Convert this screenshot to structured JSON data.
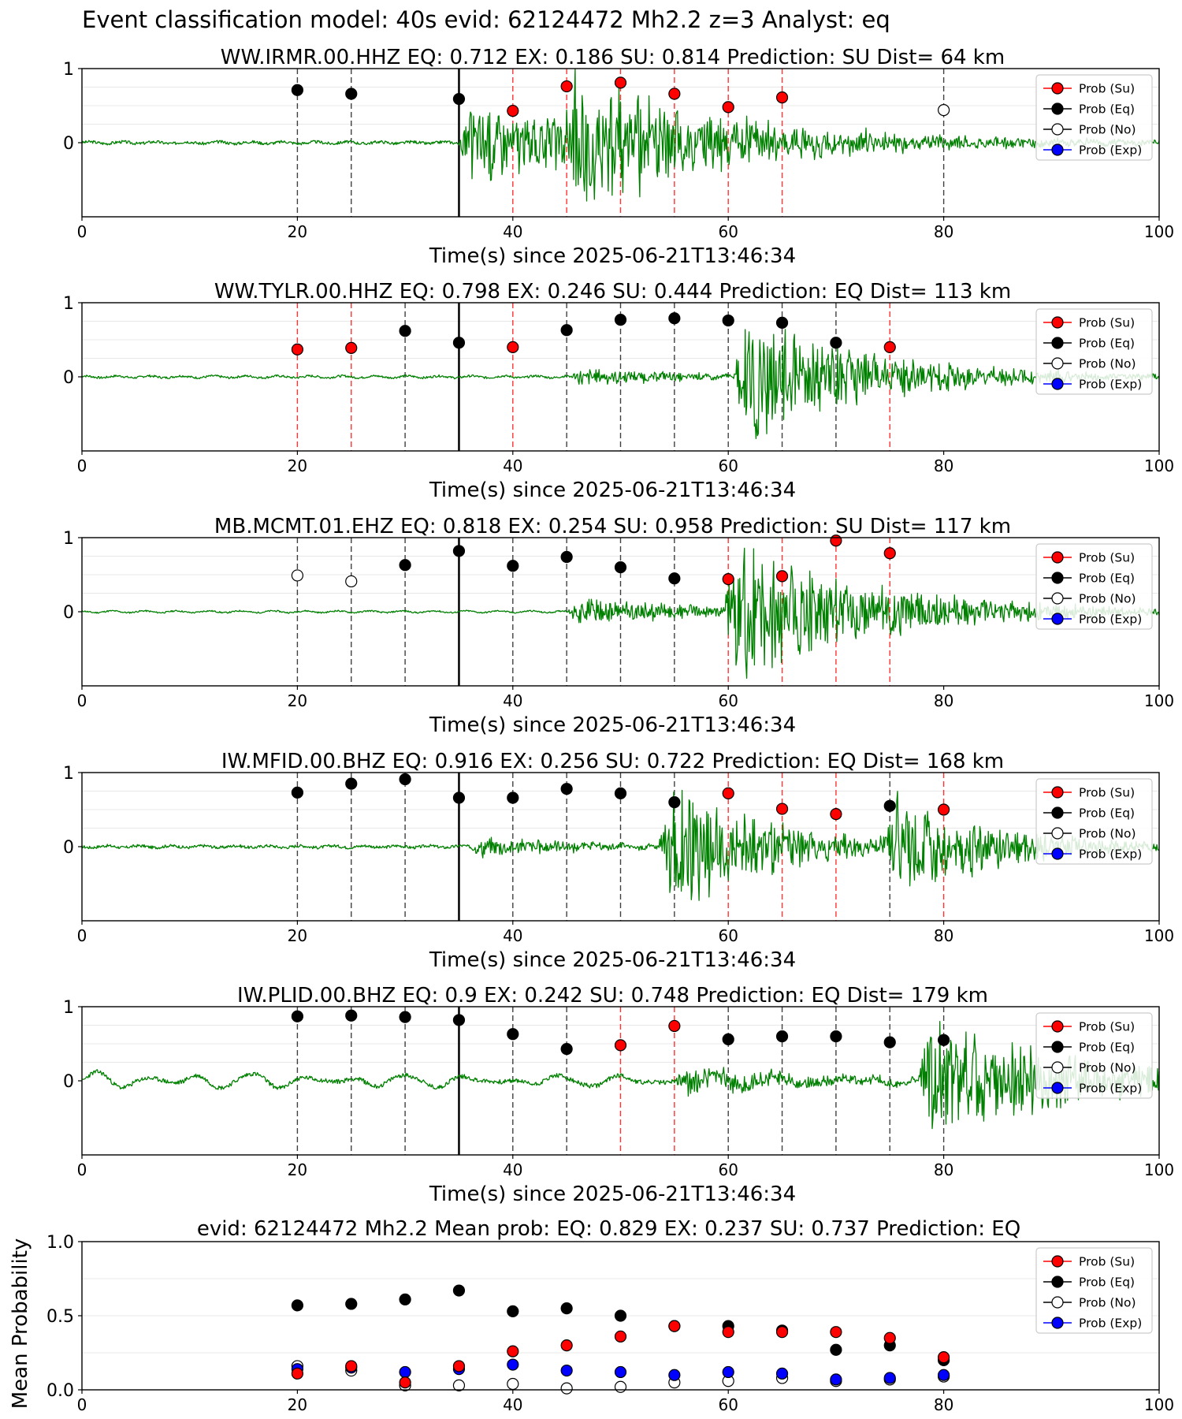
{
  "figure_title": "Event classification model: 40s evid: 62124472 Mh2.2 z=3 Analyst: eq",
  "legend_labels": [
    "Prob (Su)",
    "Prob (Eq)",
    "Prob (No)",
    "Prob (Exp)"
  ],
  "colors": {
    "su": "#ff0000",
    "eq": "#000000",
    "no": "#ffffff",
    "exp": "#0000ff",
    "waveform": "#008000",
    "su_line": "#ff0000",
    "eq_line": "#000000",
    "grid": "#e8e8e8"
  },
  "chart_data": [
    {
      "type": "line+scatter",
      "title": "WW.IRMR.00.HHZ   EQ: 0.712  EX: 0.186  SU: 0.814   Prediction: SU    Dist= 64 km",
      "xlabel": "Time(s) since 2025-06-21T13:46:34",
      "ylabel": "",
      "xlim": [
        0,
        100
      ],
      "ylim": [
        -1,
        1
      ],
      "xticks": [
        "0",
        "20",
        "40",
        "60",
        "80",
        "100"
      ],
      "yticks": [
        "1",
        "0"
      ],
      "origin_time": 35,
      "waveform": {
        "onsets": [
          {
            "t": 35,
            "amp": 0.6
          },
          {
            "t": 44.5,
            "amp": 0.95
          }
        ],
        "noise": 0.02,
        "coda": 15,
        "seed": 3
      },
      "windows": [
        {
          "t": 20,
          "label": "EQ",
          "prob": 0.71
        },
        {
          "t": 25,
          "label": "EQ",
          "prob": 0.66
        },
        {
          "t": 35,
          "label": "EQ",
          "prob": 0.59
        },
        {
          "t": 40,
          "label": "SU",
          "prob": 0.43
        },
        {
          "t": 45,
          "label": "SU",
          "prob": 0.76
        },
        {
          "t": 50,
          "label": "SU",
          "prob": 0.81
        },
        {
          "t": 55,
          "label": "SU",
          "prob": 0.66
        },
        {
          "t": 60,
          "label": "SU",
          "prob": 0.48
        },
        {
          "t": 65,
          "label": "SU",
          "prob": 0.61
        },
        {
          "t": 80,
          "label": "NO",
          "prob": 0.44
        }
      ]
    },
    {
      "type": "line+scatter",
      "title": "WW.TYLR.00.HHZ   EQ: 0.798  EX: 0.246  SU: 0.444   Prediction: EQ    Dist= 113 km",
      "xlabel": "Time(s) since 2025-06-21T13:46:34",
      "ylabel": "",
      "xlim": [
        0,
        100
      ],
      "ylim": [
        -1,
        1
      ],
      "xticks": [
        "0",
        "20",
        "40",
        "60",
        "80",
        "100"
      ],
      "yticks": [
        "1",
        "0"
      ],
      "origin_time": 35,
      "waveform": {
        "onsets": [
          {
            "t": 45,
            "amp": 0.12
          },
          {
            "t": 60.5,
            "amp": 0.95
          }
        ],
        "noise": 0.015,
        "coda": 12,
        "seed": 7
      },
      "windows": [
        {
          "t": 20,
          "label": "SU",
          "prob": 0.37
        },
        {
          "t": 25,
          "label": "SU",
          "prob": 0.39
        },
        {
          "t": 30,
          "label": "EQ",
          "prob": 0.62
        },
        {
          "t": 35,
          "label": "EQ",
          "prob": 0.46
        },
        {
          "t": 40,
          "label": "SU",
          "prob": 0.4
        },
        {
          "t": 45,
          "label": "EQ",
          "prob": 0.63
        },
        {
          "t": 50,
          "label": "EQ",
          "prob": 0.77
        },
        {
          "t": 55,
          "label": "EQ",
          "prob": 0.79
        },
        {
          "t": 60,
          "label": "EQ",
          "prob": 0.76
        },
        {
          "t": 65,
          "label": "EQ",
          "prob": 0.73
        },
        {
          "t": 70,
          "label": "EQ",
          "prob": 0.46
        },
        {
          "t": 75,
          "label": "SU",
          "prob": 0.4
        }
      ]
    },
    {
      "type": "line+scatter",
      "title": "MB.MCMT.01.EHZ   EQ: 0.818  EX: 0.254  SU: 0.958   Prediction: SU    Dist= 117 km",
      "xlabel": "Time(s) since 2025-06-21T13:46:34",
      "ylabel": "",
      "xlim": [
        0,
        100
      ],
      "ylim": [
        -1,
        1
      ],
      "xticks": [
        "0",
        "20",
        "40",
        "60",
        "80",
        "100"
      ],
      "yticks": [
        "1",
        "0"
      ],
      "origin_time": 35,
      "waveform": {
        "onsets": [
          {
            "t": 45,
            "amp": 0.2
          },
          {
            "t": 59.5,
            "amp": 0.95
          }
        ],
        "noise": 0.01,
        "coda": 14,
        "seed": 11
      },
      "windows": [
        {
          "t": 20,
          "label": "NO",
          "prob": 0.49
        },
        {
          "t": 25,
          "label": "NO",
          "prob": 0.41
        },
        {
          "t": 30,
          "label": "EQ",
          "prob": 0.63
        },
        {
          "t": 35,
          "label": "EQ",
          "prob": 0.82
        },
        {
          "t": 40,
          "label": "EQ",
          "prob": 0.62
        },
        {
          "t": 45,
          "label": "EQ",
          "prob": 0.74
        },
        {
          "t": 50,
          "label": "EQ",
          "prob": 0.6
        },
        {
          "t": 55,
          "label": "EQ",
          "prob": 0.45
        },
        {
          "t": 60,
          "label": "SU",
          "prob": 0.44
        },
        {
          "t": 65,
          "label": "SU",
          "prob": 0.48
        },
        {
          "t": 70,
          "label": "SU",
          "prob": 0.96
        },
        {
          "t": 75,
          "label": "SU",
          "prob": 0.79
        }
      ]
    },
    {
      "type": "line+scatter",
      "title": "IW.MFID.00.BHZ   EQ: 0.916  EX: 0.256  SU: 0.722   Prediction: EQ    Dist= 168 km",
      "xlabel": "Time(s) since 2025-06-21T13:46:34",
      "ylabel": "",
      "xlim": [
        0,
        100
      ],
      "ylim": [
        -1,
        1
      ],
      "xticks": [
        "0",
        "20",
        "40",
        "60",
        "80",
        "100"
      ],
      "yticks": [
        "1",
        "0"
      ],
      "origin_time": 35,
      "waveform": {
        "onsets": [
          {
            "t": 36,
            "amp": 0.15
          },
          {
            "t": 53.5,
            "amp": 0.95
          },
          {
            "t": 74.5,
            "amp": 0.75
          }
        ],
        "noise": 0.02,
        "coda": 10,
        "seed": 17
      },
      "windows": [
        {
          "t": 20,
          "label": "EQ",
          "prob": 0.73
        },
        {
          "t": 25,
          "label": "EQ",
          "prob": 0.85
        },
        {
          "t": 30,
          "label": "EQ",
          "prob": 0.91
        },
        {
          "t": 35,
          "label": "EQ",
          "prob": 0.66
        },
        {
          "t": 40,
          "label": "EQ",
          "prob": 0.66
        },
        {
          "t": 45,
          "label": "EQ",
          "prob": 0.78
        },
        {
          "t": 50,
          "label": "EQ",
          "prob": 0.72
        },
        {
          "t": 55,
          "label": "EQ",
          "prob": 0.6
        },
        {
          "t": 60,
          "label": "SU",
          "prob": 0.72
        },
        {
          "t": 65,
          "label": "SU",
          "prob": 0.51
        },
        {
          "t": 70,
          "label": "SU",
          "prob": 0.44
        },
        {
          "t": 75,
          "label": "EQ",
          "prob": 0.55
        },
        {
          "t": 80,
          "label": "SU",
          "prob": 0.5
        }
      ]
    },
    {
      "type": "line+scatter",
      "title": "IW.PLID.00.BHZ   EQ: 0.9  EX: 0.242  SU: 0.748   Prediction: EQ    Dist= 179 km",
      "xlabel": "Time(s) since 2025-06-21T13:46:34",
      "ylabel": "",
      "xlim": [
        0,
        100
      ],
      "ylim": [
        -1,
        1
      ],
      "xticks": [
        "0",
        "20",
        "40",
        "60",
        "80",
        "100"
      ],
      "yticks": [
        "1",
        "0"
      ],
      "origin_time": 35,
      "waveform": {
        "onsets": [
          {
            "t": 55,
            "amp": 0.2
          },
          {
            "t": 77.5,
            "amp": 0.95
          }
        ],
        "noise": 0.03,
        "coda": 14,
        "seed": 23,
        "swell": 0.08
      },
      "windows": [
        {
          "t": 20,
          "label": "EQ",
          "prob": 0.87
        },
        {
          "t": 25,
          "label": "EQ",
          "prob": 0.88
        },
        {
          "t": 30,
          "label": "EQ",
          "prob": 0.86
        },
        {
          "t": 35,
          "label": "EQ",
          "prob": 0.82
        },
        {
          "t": 40,
          "label": "EQ",
          "prob": 0.63
        },
        {
          "t": 45,
          "label": "EQ",
          "prob": 0.43
        },
        {
          "t": 50,
          "label": "SU",
          "prob": 0.48
        },
        {
          "t": 55,
          "label": "SU",
          "prob": 0.74
        },
        {
          "t": 60,
          "label": "EQ",
          "prob": 0.56
        },
        {
          "t": 65,
          "label": "EQ",
          "prob": 0.6
        },
        {
          "t": 70,
          "label": "EQ",
          "prob": 0.6
        },
        {
          "t": 75,
          "label": "EQ",
          "prob": 0.52
        },
        {
          "t": 80,
          "label": "EQ",
          "prob": 0.55
        }
      ]
    },
    {
      "type": "scatter",
      "title": "evid: 62124472  Mh2.2   Mean prob:   EQ: 0.829  EX: 0.237  SU: 0.737   Prediction: EQ",
      "xlabel": "",
      "ylabel": "Mean Probability",
      "xlim": [
        0,
        100
      ],
      "ylim": [
        0,
        1
      ],
      "xticks": [
        "0",
        "20",
        "40",
        "60",
        "80",
        "100"
      ],
      "yticks": [
        "1.0",
        "0.5",
        "0.0"
      ],
      "x": [
        20,
        25,
        30,
        35,
        40,
        45,
        50,
        55,
        60,
        65,
        70,
        75,
        80
      ],
      "series": [
        {
          "key": "eq",
          "values": [
            0.57,
            0.58,
            0.61,
            0.67,
            0.53,
            0.55,
            0.5,
            0.43,
            0.43,
            0.4,
            0.27,
            0.3,
            0.2
          ]
        },
        {
          "key": "no",
          "values": [
            0.16,
            0.13,
            0.03,
            0.03,
            0.04,
            0.01,
            0.02,
            0.05,
            0.06,
            0.08,
            0.06,
            0.07,
            0.09
          ]
        },
        {
          "key": "exp",
          "values": [
            0.14,
            0.15,
            0.12,
            0.14,
            0.17,
            0.13,
            0.12,
            0.1,
            0.12,
            0.11,
            0.07,
            0.08,
            0.1
          ]
        },
        {
          "key": "su",
          "values": [
            0.11,
            0.16,
            0.05,
            0.16,
            0.26,
            0.3,
            0.36,
            0.43,
            0.39,
            0.39,
            0.39,
            0.35,
            0.22
          ]
        }
      ]
    }
  ]
}
